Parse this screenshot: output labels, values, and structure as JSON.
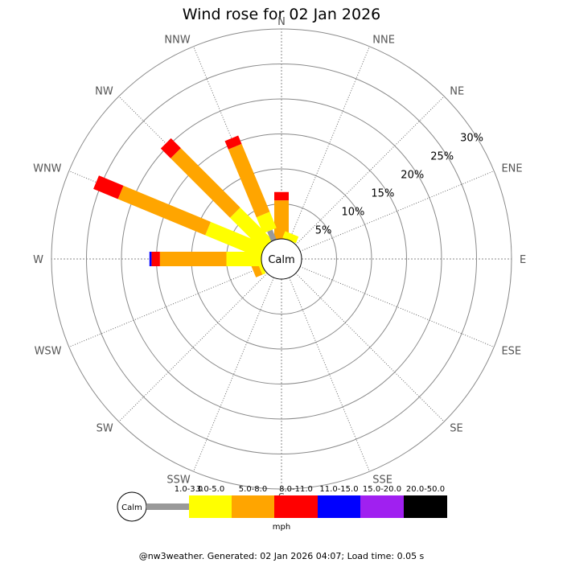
{
  "chart_data": {
    "type": "wind-rose",
    "title": "Wind rose for 02 Jan 2026",
    "directions": [
      "N",
      "NNE",
      "NE",
      "ENE",
      "E",
      "ESE",
      "SE",
      "SSE",
      "S",
      "SSW",
      "SW",
      "WSW",
      "W",
      "WNW",
      "NW",
      "NNW"
    ],
    "rings": [
      {
        "pct": 5,
        "label": "5%"
      },
      {
        "pct": 10,
        "label": "10%"
      },
      {
        "pct": 15,
        "label": "15%"
      },
      {
        "pct": 20,
        "label": "20%"
      },
      {
        "pct": 25,
        "label": "25%"
      },
      {
        "pct": 30,
        "label": "30%"
      }
    ],
    "calm_label": "Calm",
    "speed_bins": [
      {
        "label": "1.0-3.0",
        "color": "#999999"
      },
      {
        "label": "3.0-5.0",
        "color": "#ffff00"
      },
      {
        "label": "5.0-8.0",
        "color": "#ffa500"
      },
      {
        "label": "8.0-11.0",
        "color": "#ff0000"
      },
      {
        "label": "11.0-15.0",
        "color": "#0000ff"
      },
      {
        "label": "15.0-20.0",
        "color": "#a020f0"
      },
      {
        "label": "20.0-50.0",
        "color": "#000000"
      }
    ],
    "units": "mph",
    "series": [
      {
        "direction": "N",
        "values": [
          0,
          0.0,
          5.5,
          1.2,
          0,
          0,
          0
        ]
      },
      {
        "direction": "NNE",
        "values": [
          0,
          1.0,
          0,
          0,
          0,
          0,
          0
        ]
      },
      {
        "direction": "NE",
        "values": [
          0,
          0,
          0,
          0,
          0,
          0,
          0
        ]
      },
      {
        "direction": "ENE",
        "values": [
          0,
          0,
          0,
          0,
          0,
          0,
          0
        ]
      },
      {
        "direction": "E",
        "values": [
          0,
          0,
          0,
          0,
          0,
          0,
          0
        ]
      },
      {
        "direction": "ESE",
        "values": [
          0,
          0,
          0,
          0,
          0,
          0,
          0
        ]
      },
      {
        "direction": "SE",
        "values": [
          0,
          0,
          0,
          0,
          0,
          0,
          0
        ]
      },
      {
        "direction": "SSE",
        "values": [
          0,
          0,
          0,
          0,
          0,
          0,
          0
        ]
      },
      {
        "direction": "S",
        "values": [
          0,
          0,
          0,
          0,
          0,
          0,
          0
        ]
      },
      {
        "direction": "SSW",
        "values": [
          0,
          0,
          0,
          0,
          0,
          0,
          0
        ]
      },
      {
        "direction": "SW",
        "values": [
          0,
          0,
          0,
          0,
          0,
          0,
          0
        ]
      },
      {
        "direction": "WSW",
        "values": [
          0,
          0.5,
          1.0,
          0,
          0,
          0,
          0
        ]
      },
      {
        "direction": "W",
        "values": [
          0,
          5.0,
          9.5,
          1.2,
          0.3,
          0,
          0
        ]
      },
      {
        "direction": "WNW",
        "values": [
          0,
          8.5,
          13.5,
          3.8,
          0,
          0,
          0
        ]
      },
      {
        "direction": "NW",
        "values": [
          0,
          6.5,
          12.0,
          2.0,
          0,
          0,
          0
        ]
      },
      {
        "direction": "NNW",
        "values": [
          1.5,
          2.5,
          10.5,
          1.3,
          0,
          0,
          0
        ]
      }
    ]
  },
  "footer": "@nw3weather. Generated: 02 Jan 2026 04:07; Load time: 0.05 s"
}
